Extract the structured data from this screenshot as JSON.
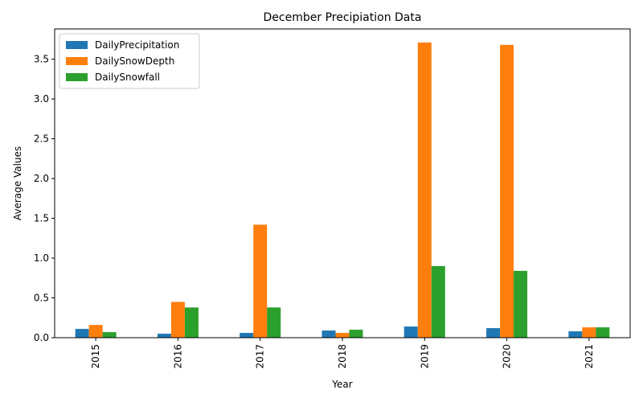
{
  "chart_data": {
    "type": "bar",
    "title": "December Precipiation Data",
    "xlabel": "Year",
    "ylabel": "Average Values",
    "categories": [
      "2015",
      "2016",
      "2017",
      "2018",
      "2019",
      "2020",
      "2021"
    ],
    "series": [
      {
        "name": "DailyPrecipitation",
        "color": "#1f77b4",
        "values": [
          0.11,
          0.05,
          0.06,
          0.09,
          0.14,
          0.12,
          0.08
        ]
      },
      {
        "name": "DailySnowDepth",
        "color": "#ff7f0e",
        "values": [
          0.16,
          0.45,
          1.42,
          0.06,
          3.71,
          3.68,
          0.13
        ]
      },
      {
        "name": "DailySnowfall",
        "color": "#2ca02c",
        "values": [
          0.07,
          0.38,
          0.38,
          0.1,
          0.9,
          0.84,
          0.13
        ]
      }
    ],
    "ylim": [
      0,
      3.88
    ],
    "yticks": [
      "0.0",
      "0.5",
      "1.0",
      "1.5",
      "2.0",
      "2.5",
      "3.0",
      "3.5"
    ],
    "ytick_values": [
      0,
      0.5,
      1.0,
      1.5,
      2.0,
      2.5,
      3.0,
      3.5
    ],
    "legend_position": "top-left",
    "grid": false
  }
}
